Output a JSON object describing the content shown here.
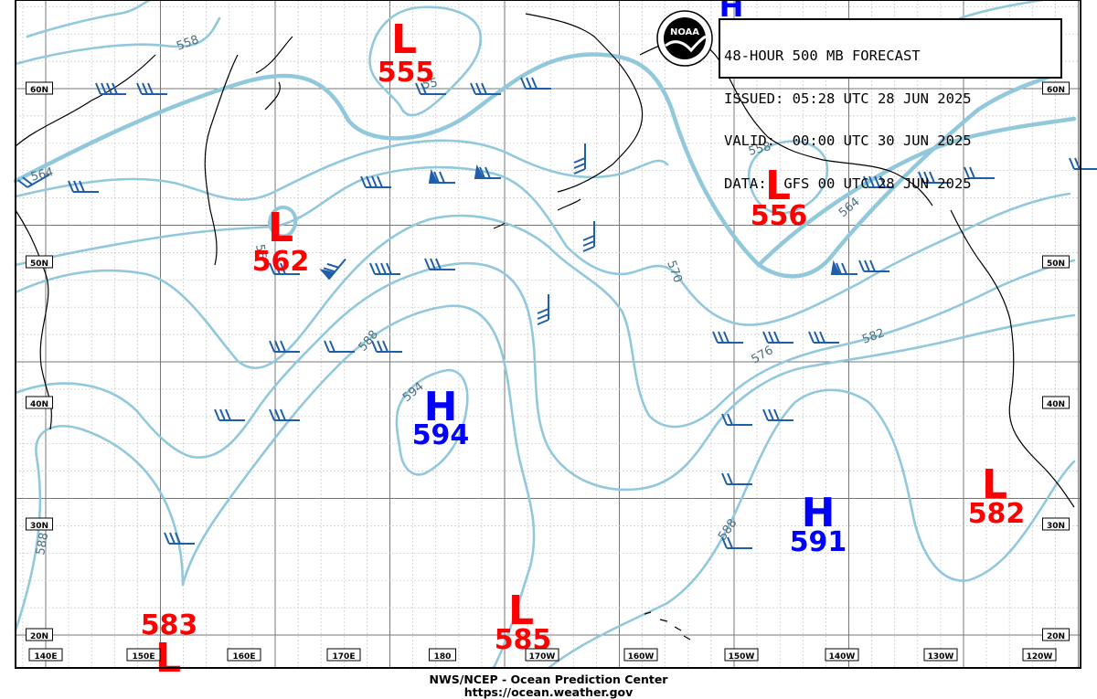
{
  "title": "48-HOUR 500 MB FORECAST",
  "issued_line": "ISSUED: 05:28 UTC 28 JUN 2025",
  "valid_line": "VALID:  00:00 UTC 30 JUN 2025",
  "data_line": "DATA:  GFS 00 UTC 28 JUN 2025",
  "logo_text": "NOAA",
  "footer": {
    "line1": "NWS/NCEP - Ocean Prediction Center",
    "line2": "https://ocean.weather.gov"
  },
  "colors": {
    "contour": "#92c8dc",
    "contour_label": "#4b6f80",
    "high": "#0000ff",
    "low": "#ff0000",
    "barb": "#1f5fa8",
    "coast": "#000000",
    "grid": "#808080"
  },
  "latitude_labels": [
    "60N",
    "50N",
    "40N",
    "30N",
    "20N"
  ],
  "longitude_labels": [
    "140E",
    "150E",
    "160E",
    "170E",
    "180",
    "170W",
    "160W",
    "150W",
    "140W",
    "130W",
    "120W"
  ],
  "pressure_centers": [
    {
      "type": "L",
      "value": "555"
    },
    {
      "type": "L",
      "value": "562"
    },
    {
      "type": "L",
      "value": "556"
    },
    {
      "type": "H",
      "value": "594"
    },
    {
      "type": "H",
      "value": "591"
    },
    {
      "type": "L",
      "value": "582"
    },
    {
      "type": "L",
      "value": "583"
    },
    {
      "type": "L",
      "value": "585"
    }
  ],
  "contour_labels": [
    "558",
    "564",
    "558",
    "564",
    "570",
    "576",
    "582",
    "588",
    "594",
    "588",
    "588",
    "55",
    "56"
  ]
}
